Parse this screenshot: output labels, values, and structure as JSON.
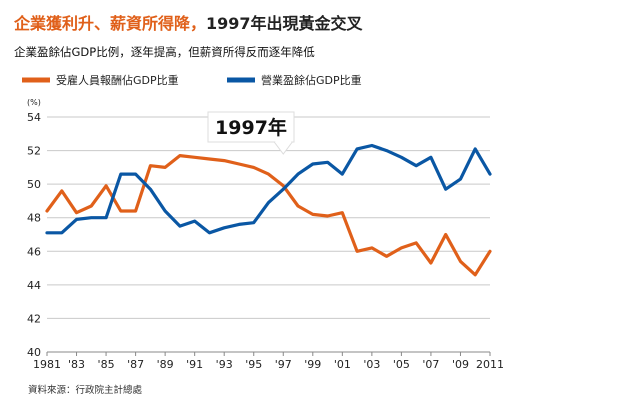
{
  "header": {
    "title_part1": "企業獲利升、薪資所得降，",
    "title_part2": "1997年出現黃金交叉",
    "subtitle": "企業盈餘佔GDP比例，逐年提高，但薪資所得反而逐年降低"
  },
  "source": "資料來源：行政院主計總處",
  "annotation": {
    "label": "1997年",
    "year": 1997
  },
  "colors": {
    "orange": "#e0601a",
    "blue": "#0a57a4",
    "grid": "#c9c9c9",
    "title_orange": "#e0601a"
  },
  "chart_data": {
    "type": "line",
    "ylabel": "(%)",
    "ylim": [
      40,
      54
    ],
    "yticks": [
      40,
      42,
      44,
      46,
      48,
      50,
      52,
      54
    ],
    "xlim": [
      1981,
      2011
    ],
    "xtick_values": [
      1981,
      1983,
      1985,
      1987,
      1989,
      1991,
      1993,
      1995,
      1997,
      1999,
      2001,
      2003,
      2005,
      2007,
      2009,
      2011
    ],
    "xtick_labels": [
      "1981",
      "'83",
      "'85",
      "'87",
      "'89",
      "'91",
      "'93",
      "'95",
      "'97",
      "'99",
      "'01",
      "'03",
      "'05",
      "'07",
      "'09",
      "2011"
    ],
    "grid": true,
    "legend_position": "top-left",
    "x": [
      1981,
      1982,
      1983,
      1984,
      1985,
      1986,
      1987,
      1988,
      1989,
      1990,
      1991,
      1992,
      1993,
      1994,
      1995,
      1996,
      1997,
      1998,
      1999,
      2000,
      2001,
      2002,
      2003,
      2004,
      2005,
      2006,
      2007,
      2008,
      2009,
      2010,
      2011
    ],
    "series": [
      {
        "name": "受雇人員報酬佔GDP比重",
        "color": "#e0601a",
        "values": [
          48.4,
          49.6,
          48.3,
          48.7,
          49.9,
          48.4,
          48.4,
          51.1,
          51.0,
          51.7,
          51.6,
          51.5,
          51.4,
          51.2,
          51.0,
          50.6,
          49.9,
          48.7,
          48.2,
          48.1,
          48.3,
          46.0,
          46.2,
          45.7,
          46.2,
          46.5,
          45.3,
          47.0,
          45.4,
          44.6,
          46.0
        ]
      },
      {
        "name": "營業盈餘佔GDP比重",
        "color": "#0a57a4",
        "values": [
          47.1,
          47.1,
          47.9,
          48.0,
          48.0,
          50.6,
          50.6,
          49.7,
          48.4,
          47.5,
          47.8,
          47.1,
          47.4,
          47.6,
          47.7,
          48.9,
          49.7,
          50.6,
          51.2,
          51.3,
          50.6,
          52.1,
          52.3,
          52.0,
          51.6,
          51.1,
          51.6,
          49.7,
          50.3,
          52.1,
          50.6
        ]
      }
    ]
  }
}
